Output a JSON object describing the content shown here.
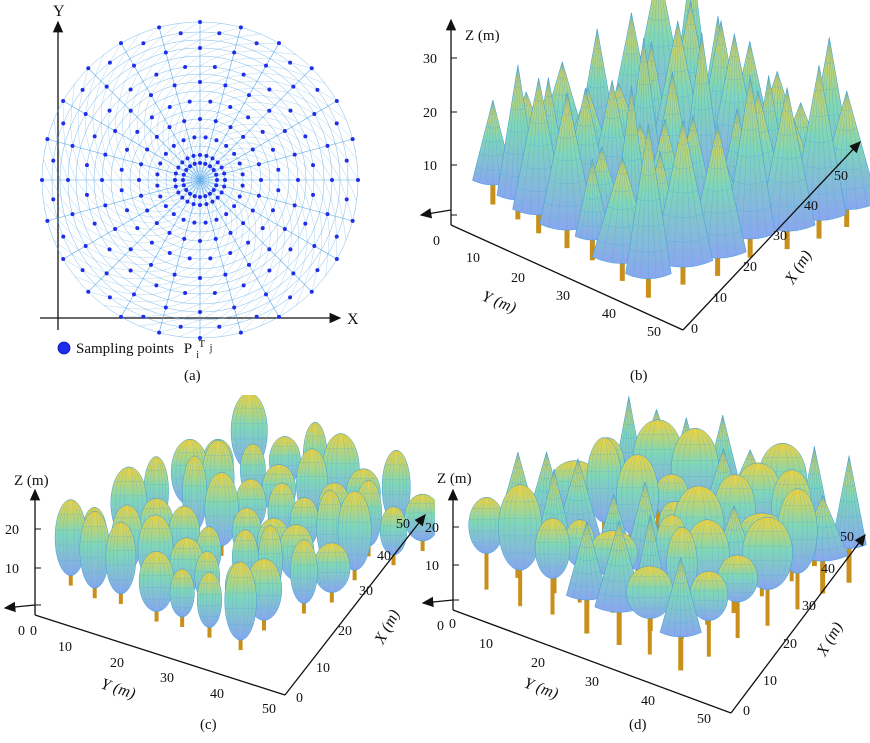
{
  "panels": {
    "a": {
      "caption": "(a)",
      "x_axis": "X",
      "y_axis": "Y",
      "legend": {
        "text": "Sampling points",
        "symbol": "P",
        "sub": "i",
        "sup": "T",
        "sup2": "j"
      },
      "rings": [
        4,
        9,
        17,
        25,
        34,
        43,
        52,
        61,
        70,
        79,
        89,
        98,
        106,
        114,
        124,
        132,
        140,
        148,
        158
      ],
      "spokes": 24,
      "inner_ring_points": 20
    },
    "b": {
      "caption": "(b)",
      "z_label": "Z (m)",
      "y_label": "Y (m)",
      "x_label": "X (m)",
      "z_ticks": [
        "0",
        "10",
        "20",
        "30"
      ],
      "y_ticks": [
        "10",
        "20",
        "30",
        "40",
        "50"
      ],
      "x_ticks": [
        "0",
        "10",
        "20",
        "30",
        "40",
        "50"
      ],
      "tree_shape": "cone"
    },
    "c": {
      "caption": "(c)",
      "z_label": "Z (m)",
      "y_label": "Y (m)",
      "x_label": "X (m)",
      "z_ticks": [
        "0",
        "10",
        "20"
      ],
      "y_ticks": [
        "0",
        "10",
        "20",
        "30",
        "40",
        "50"
      ],
      "x_ticks": [
        "0",
        "10",
        "20",
        "30",
        "40",
        "50"
      ],
      "tree_shape": "ellipsoid"
    },
    "d": {
      "caption": "(d)",
      "z_label": "Z (m)",
      "y_label": "Y (m)",
      "x_label": "X (m)",
      "z_ticks": [
        "0",
        "10",
        "20"
      ],
      "y_ticks": [
        "0",
        "10",
        "20",
        "30",
        "40",
        "50"
      ],
      "x_ticks": [
        "0",
        "10",
        "20",
        "30",
        "40",
        "50"
      ],
      "tree_shape": "mixed"
    }
  },
  "colors": {
    "mesh": "#5aa9e6",
    "sample": "#1f2ee8",
    "trunk": "#c8901a",
    "crown_top": "#f2d23a",
    "crown_mid": "#7fd6b8",
    "crown_low": "#8aa6f0"
  }
}
